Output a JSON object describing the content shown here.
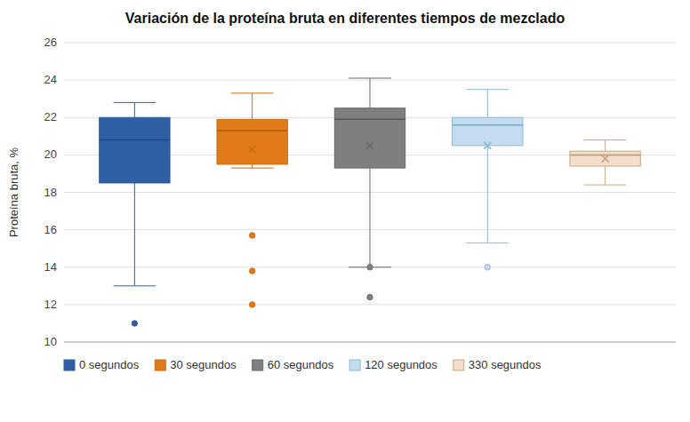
{
  "chart_data": {
    "type": "box",
    "title": "Variación de la proteína bruta en diferentes tiempos de mezclado",
    "y_label": "Proteína bruta, %",
    "ylim": [
      10,
      26
    ],
    "yticks": [
      10,
      12,
      14,
      16,
      18,
      20,
      22,
      24,
      26
    ],
    "grid": true,
    "legend": "bottom",
    "tick_labels": "y",
    "series": [
      {
        "name": "0 segundos",
        "color": "#2E5FA3",
        "edge_color": "#2E5FA3",
        "median_color": "#1E4A8A",
        "q1": 18.5,
        "median": 20.8,
        "q3": 22.0,
        "whislo": 13.0,
        "whishi": 22.8,
        "mean": 20.1,
        "fliers": [
          11.0
        ]
      },
      {
        "name": "30 segundos",
        "color": "#E07B1A",
        "edge_color": "#C96A10",
        "median_color": "#B85A08",
        "q1": 19.5,
        "median": 21.3,
        "q3": 21.9,
        "whislo": 19.3,
        "whishi": 23.3,
        "mean": 20.3,
        "fliers": [
          15.7,
          13.8,
          12.0
        ]
      },
      {
        "name": "60 segundos",
        "color": "#7F7F7F",
        "edge_color": "#696969",
        "median_color": "#585858",
        "q1": 19.3,
        "median": 21.9,
        "q3": 22.5,
        "whislo": 14.0,
        "whishi": 24.1,
        "mean": 20.5,
        "fliers": [
          12.4,
          14.0
        ]
      },
      {
        "name": "120 segundos",
        "color": "#C5DCEF",
        "edge_color": "#8BB8D8",
        "median_color": "#7AA8C8",
        "q1": 20.5,
        "median": 21.6,
        "q3": 22.0,
        "whislo": 15.3,
        "whishi": 23.5,
        "mean": 20.5,
        "fliers": [
          14.0
        ]
      },
      {
        "name": "330 segundos",
        "color": "#F2DECA",
        "edge_color": "#C8A882",
        "median_color": "#B89872",
        "q1": 19.4,
        "median": 20.0,
        "q3": 20.2,
        "whislo": 18.4,
        "whishi": 20.8,
        "mean": 19.8,
        "fliers": []
      }
    ]
  }
}
